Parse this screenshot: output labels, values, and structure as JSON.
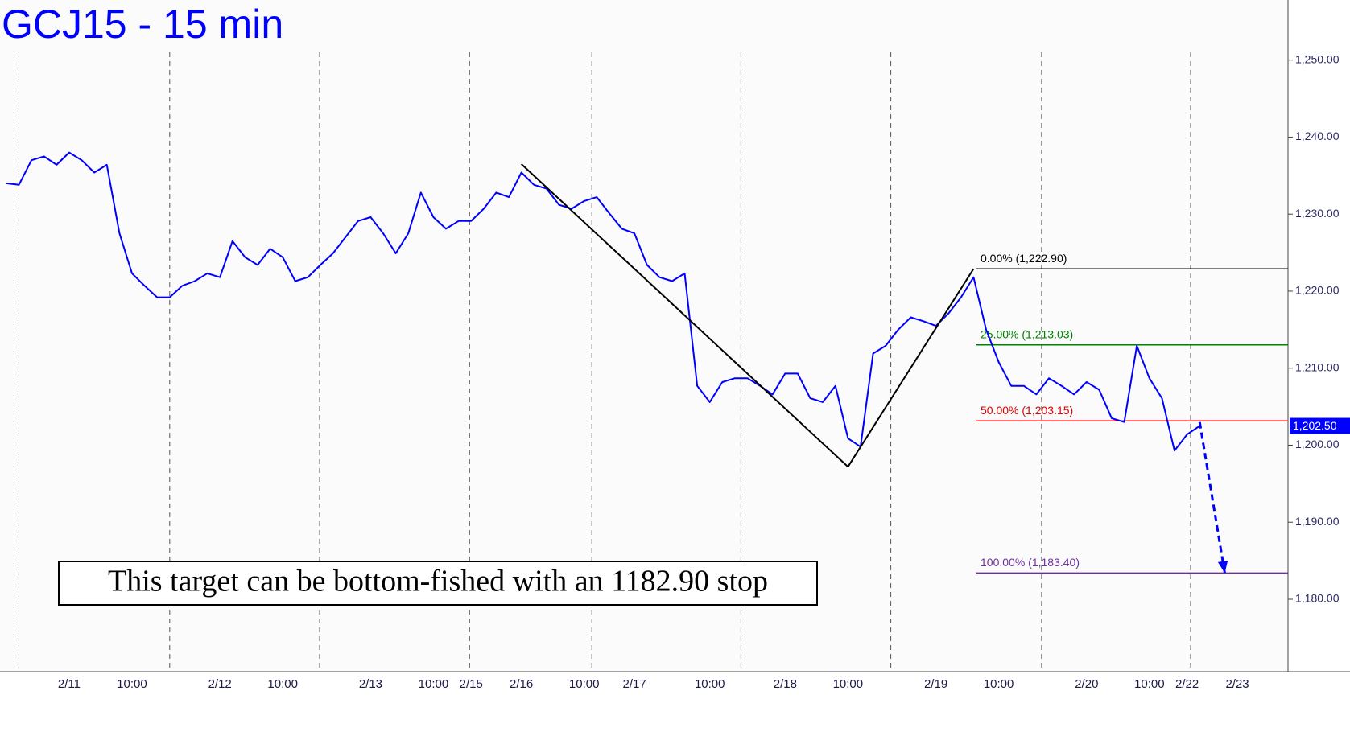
{
  "chart_data": {
    "type": "line",
    "title": "GCJ15 - 15 min",
    "annotation": "This target can be bottom-fished with an 1182.90 stop",
    "categories": [
      null,
      null,
      null,
      null,
      null,
      "2/11",
      null,
      null,
      null,
      null,
      "10:00",
      null,
      null,
      null,
      null,
      null,
      null,
      "2/12",
      null,
      null,
      null,
      null,
      "10:00",
      null,
      null,
      null,
      null,
      null,
      null,
      "2/13",
      null,
      null,
      null,
      null,
      "10:00",
      null,
      null,
      "2/15",
      null,
      null,
      null,
      "2/16",
      null,
      null,
      null,
      null,
      "10:00",
      null,
      null,
      null,
      "2/17",
      null,
      null,
      null,
      null,
      null,
      "10:00",
      null,
      null,
      null,
      null,
      null,
      "2/18",
      null,
      null,
      null,
      null,
      "10:00",
      null,
      null,
      null,
      null,
      null,
      null,
      "2/19",
      null,
      null,
      null,
      null,
      "10:00",
      null,
      null,
      null,
      null,
      null,
      null,
      "2/20",
      null,
      null,
      null,
      null,
      "10:00",
      null,
      null,
      "2/22",
      null,
      null,
      null,
      "2/23"
    ],
    "price": {
      "color": "#0000ff",
      "values": [
        1234.0,
        1233.8,
        1237,
        1237.5,
        1236.4,
        1238,
        1237,
        1235.4,
        1236.4,
        1227.5,
        1222.3,
        1220.7,
        1219.2,
        1219.2,
        1220.7,
        1221.3,
        1222.3,
        1221.8,
        1226.5,
        1224.4,
        1223.4,
        1225.5,
        1224.4,
        1221.3,
        1221.8,
        1223.4,
        1224.9,
        1227,
        1229.1,
        1229.6,
        1227.5,
        1224.9,
        1227.5,
        1232.8,
        1229.6,
        1228.1,
        1229.1,
        1229.1,
        1230.7,
        1232.8,
        1232.2,
        1235.4,
        1233.8,
        1233.3,
        1231.2,
        1230.7,
        1231.7,
        1232.2,
        1230.1,
        1228.1,
        1227.5,
        1223.4,
        1221.8,
        1221.3,
        1222.3,
        1207.7,
        1205.6,
        1208.2,
        1208.7,
        1208.7,
        1207.7,
        1206.6,
        1209.3,
        1209.3,
        1206.1,
        1205.6,
        1207.7,
        1200.9,
        1199.8,
        1211.9,
        1212.9,
        1215,
        1216.6,
        1216.1,
        1215.5,
        1217.1,
        1219.2,
        1221.8,
        1215,
        1210.8,
        1207.7,
        1207.7,
        1206.6,
        1208.7,
        1207.7,
        1206.6,
        1208.2,
        1207.2,
        1203.5,
        1203,
        1212.9,
        1208.7,
        1206.1,
        1199.3,
        1201.4,
        1202.5,
        null,
        null,
        null
      ]
    },
    "pattern": {
      "color": "#000000",
      "values": [
        null,
        null,
        null,
        null,
        null,
        null,
        null,
        null,
        null,
        null,
        null,
        null,
        null,
        null,
        null,
        null,
        null,
        null,
        null,
        null,
        null,
        null,
        null,
        null,
        null,
        null,
        null,
        null,
        null,
        null,
        null,
        null,
        null,
        null,
        null,
        null,
        null,
        null,
        null,
        null,
        null,
        1236.5,
        null,
        null,
        null,
        null,
        null,
        null,
        null,
        null,
        null,
        null,
        null,
        null,
        null,
        null,
        null,
        null,
        null,
        null,
        null,
        null,
        null,
        null,
        null,
        null,
        null,
        1197.2,
        null,
        null,
        null,
        null,
        null,
        null,
        null,
        null,
        null,
        1222.9,
        null,
        null,
        null,
        null,
        null,
        null,
        null,
        null,
        null,
        null,
        null,
        null,
        null,
        null,
        null,
        null,
        null,
        null,
        null,
        null,
        null
      ]
    },
    "projection": {
      "color": "#0000ff",
      "values": [
        null,
        null,
        null,
        null,
        null,
        null,
        null,
        null,
        null,
        null,
        null,
        null,
        null,
        null,
        null,
        null,
        null,
        null,
        null,
        null,
        null,
        null,
        null,
        null,
        null,
        null,
        null,
        null,
        null,
        null,
        null,
        null,
        null,
        null,
        null,
        null,
        null,
        null,
        null,
        null,
        null,
        null,
        null,
        null,
        null,
        null,
        null,
        null,
        null,
        null,
        null,
        null,
        null,
        null,
        null,
        null,
        null,
        null,
        null,
        null,
        null,
        null,
        null,
        null,
        null,
        null,
        null,
        null,
        null,
        null,
        null,
        null,
        null,
        null,
        null,
        null,
        null,
        null,
        null,
        null,
        null,
        null,
        null,
        null,
        null,
        null,
        null,
        null,
        null,
        null,
        null,
        null,
        null,
        null,
        null,
        1203,
        null,
        1183.4,
        null
      ]
    },
    "fib_levels": [
      {
        "label": "0.00% (1,222.90)",
        "value": 1222.9,
        "color": "#000000"
      },
      {
        "label": "25.00% (1,213.03)",
        "value": 1213.03,
        "color": "#008000"
      },
      {
        "label": "50.00% (1,203.15)",
        "value": 1203.15,
        "color": "#e00000"
      },
      {
        "label": "100.00% (1,183.40)",
        "value": 1183.4,
        "color": "#7030a0"
      }
    ],
    "last_price": {
      "value": 1202.5,
      "label": "1,202.50"
    },
    "ylim": [
      1170.6,
      1257.8
    ],
    "yticks": [
      {
        "value": 1180,
        "label": "1,180.00"
      },
      {
        "value": 1190,
        "label": "1,190.00"
      },
      {
        "value": 1200,
        "label": "1,200.00"
      },
      {
        "value": 1210,
        "label": "1,210.00"
      },
      {
        "value": 1220,
        "label": "1,220.00"
      },
      {
        "value": 1230,
        "label": "1,230.00"
      },
      {
        "value": 1240,
        "label": "1,240.00"
      },
      {
        "value": 1250,
        "label": "1,250.00"
      }
    ]
  }
}
